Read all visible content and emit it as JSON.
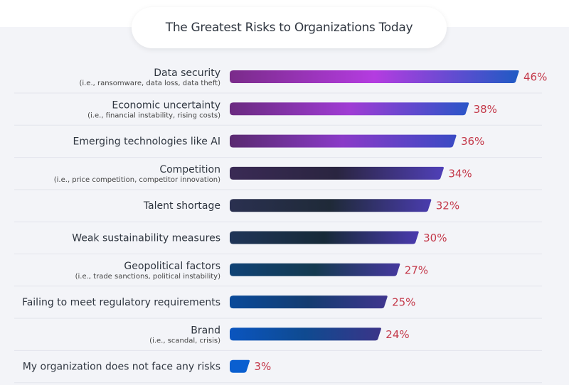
{
  "chart_data": {
    "type": "bar",
    "orientation": "horizontal",
    "title": "The Greatest Risks to Organizations Today",
    "categories": [
      {
        "label": "Data security",
        "sublabel": "(i.e., ransomware, data loss, data theft)"
      },
      {
        "label": "Economic uncertainty",
        "sublabel": "(i.e., financial instability, rising costs)"
      },
      {
        "label": "Emerging technologies like AI",
        "sublabel": ""
      },
      {
        "label": "Competition",
        "sublabel": "(i.e., price competition, competitor innovation)"
      },
      {
        "label": "Talent shortage",
        "sublabel": ""
      },
      {
        "label": "Weak sustainability measures",
        "sublabel": ""
      },
      {
        "label": "Geopolitical factors",
        "sublabel": "(i.e., trade sanctions, political instability)"
      },
      {
        "label": "Failing to meet regulatory requirements",
        "sublabel": ""
      },
      {
        "label": "Brand",
        "sublabel": "(i.e., scandal, crisis)"
      },
      {
        "label": "My organization does not face any risks",
        "sublabel": ""
      }
    ],
    "values": [
      46,
      38,
      36,
      34,
      32,
      30,
      27,
      25,
      24,
      3
    ],
    "value_labels": [
      "46%",
      "38%",
      "36%",
      "34%",
      "32%",
      "30%",
      "27%",
      "25%",
      "24%",
      "3%"
    ],
    "unit": "%",
    "xlim": [
      0,
      46
    ],
    "grid": false,
    "colors": {
      "value_text": "#c4394a",
      "bar_gradients": [
        [
          "#7a2b8a",
          "#b43ce0",
          "#1f5ac4"
        ],
        [
          "#6a2a80",
          "#a03cd4",
          "#2a55c8"
        ],
        [
          "#5a2a70",
          "#8a3ac8",
          "#3a4ac4"
        ],
        [
          "#3a2a55",
          "#2a2540",
          "#5040b8"
        ],
        [
          "#2a3050",
          "#1f2a38",
          "#4a3cae"
        ],
        [
          "#1f3558",
          "#172a38",
          "#4a3aae"
        ],
        [
          "#0f4275",
          "#153a50",
          "#45389e"
        ],
        [
          "#0a4a9a",
          "#143c70",
          "#3f368e"
        ],
        [
          "#0a55bf",
          "#0f4a90",
          "#3b3488"
        ],
        [
          "#0a5fd0",
          "#0a5fd0",
          "#0a5fd0"
        ]
      ]
    }
  }
}
